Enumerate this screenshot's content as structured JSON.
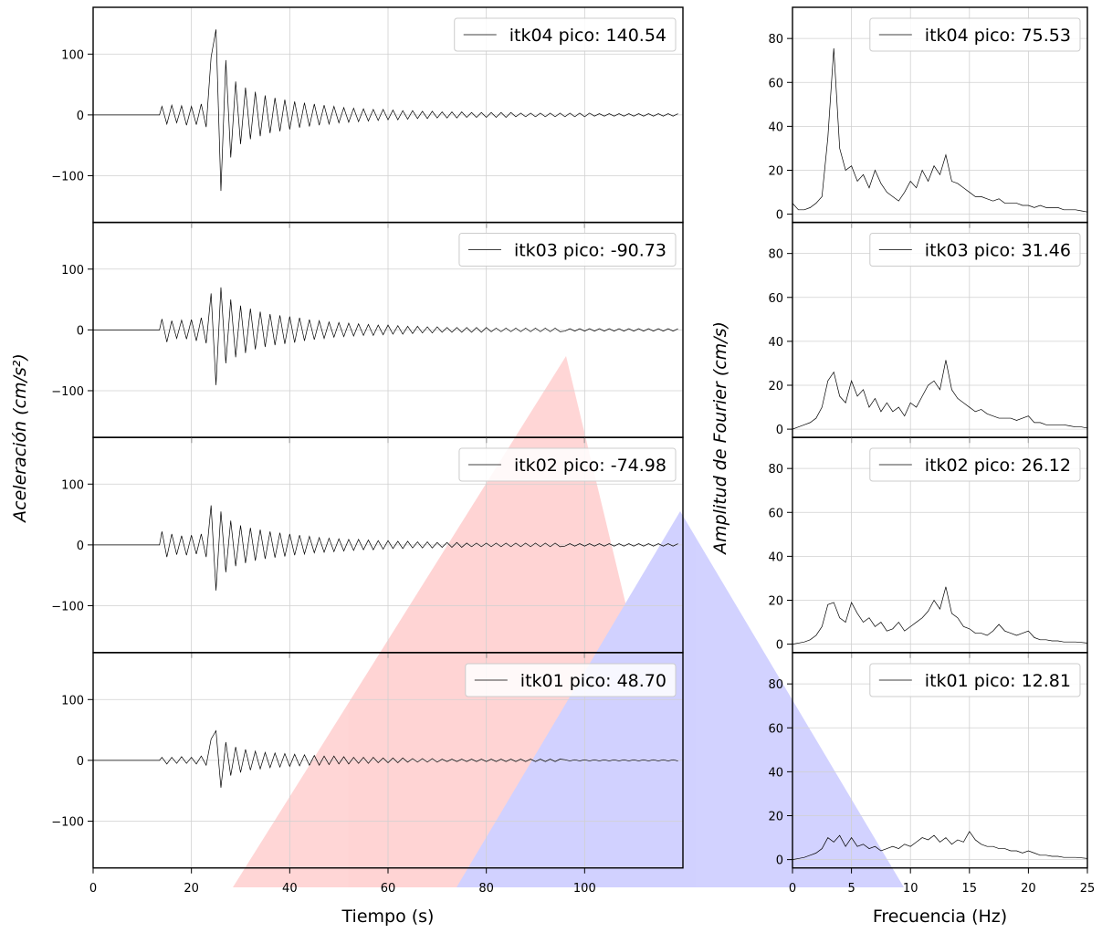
{
  "chart_data": [
    {
      "type": "line",
      "xlabel": "Tiempo (s)",
      "ylabel": "Aceleración (cm/s²)",
      "xlim": [
        0,
        120
      ],
      "ylim": [
        -177,
        177
      ],
      "xticks": [
        0,
        20,
        40,
        60,
        80,
        100
      ],
      "yticks": [
        {
          "value": -100,
          "label": "−100"
        },
        0,
        100
      ],
      "grid": true,
      "x": [
        0,
        13.5,
        14,
        15,
        16,
        17,
        18,
        19,
        20,
        21,
        22,
        23,
        24,
        25,
        26,
        27,
        28,
        29,
        30,
        31,
        32,
        33,
        34,
        35,
        36,
        37,
        38,
        39,
        40,
        41,
        42,
        43,
        44,
        45,
        46,
        47,
        48,
        49,
        50,
        51,
        52,
        53,
        54,
        55,
        56,
        57,
        58,
        59,
        60,
        61,
        62,
        63,
        64,
        65,
        66,
        67,
        68,
        69,
        70,
        71,
        72,
        73,
        74,
        75,
        76,
        77,
        78,
        79,
        80,
        81,
        82,
        83,
        84,
        85,
        86,
        87,
        88,
        89,
        90,
        91,
        92,
        93,
        94,
        95,
        96,
        97,
        98,
        99,
        100,
        101,
        102,
        103,
        104,
        105,
        106,
        107,
        108,
        109,
        110,
        111,
        112,
        113,
        114,
        115,
        116,
        117,
        118,
        119
      ],
      "series": [
        {
          "name": "itk04 pico: 140.54",
          "color": "#000000",
          "values": [
            0,
            0,
            14,
            -15,
            16,
            -13,
            15,
            -17,
            14,
            -16,
            18,
            -20,
            95,
            140.54,
            -125,
            90,
            -70,
            55,
            -48,
            45,
            -40,
            38,
            -35,
            32,
            -30,
            28,
            -27,
            25,
            -24,
            22,
            -21,
            20,
            -19,
            18,
            -17,
            16,
            -15,
            14,
            -13,
            12,
            -12,
            11,
            -11,
            10,
            -10,
            9,
            -9,
            9,
            -8,
            8,
            -8,
            7,
            -7,
            7,
            -6,
            6,
            -6,
            6,
            -5,
            5,
            -5,
            5,
            -5,
            5,
            -4,
            4,
            -4,
            4,
            -4,
            4,
            -4,
            4,
            -4,
            4,
            -3,
            3,
            -3,
            3,
            -3,
            3,
            -3,
            3,
            -3,
            3,
            -3,
            3,
            -3,
            3,
            -3,
            3,
            -2,
            2,
            -2,
            2,
            -2,
            2,
            -2,
            2,
            -2,
            2,
            -2,
            2,
            -2,
            2,
            -2,
            2,
            -2,
            2
          ]
        },
        {
          "name": "itk03 pico: -90.73",
          "color": "#000000",
          "values": [
            0,
            0,
            18,
            -20,
            15,
            -14,
            16,
            -15,
            17,
            -18,
            20,
            -22,
            60,
            -90.73,
            70,
            -55,
            50,
            -45,
            40,
            -38,
            35,
            -32,
            30,
            -28,
            26,
            -25,
            24,
            -23,
            22,
            -21,
            20,
            -18,
            17,
            -16,
            15,
            -14,
            13,
            -12,
            12,
            -11,
            11,
            -10,
            10,
            -9,
            9,
            -9,
            8,
            -8,
            8,
            -7,
            7,
            -7,
            6,
            -6,
            6,
            -5,
            5,
            -5,
            5,
            -4,
            4,
            -4,
            4,
            -4,
            4,
            -4,
            4,
            -4,
            4,
            -3,
            3,
            -3,
            3,
            -3,
            3,
            -3,
            3,
            -3,
            3,
            -3,
            3,
            -3,
            3,
            -3,
            -2,
            2,
            -2,
            2,
            -2,
            2,
            -2,
            2,
            -2,
            2,
            -2,
            2,
            -2,
            2,
            -2,
            2,
            -2,
            2,
            -2,
            2,
            -2,
            2,
            -2,
            2
          ]
        },
        {
          "name": "itk02 pico: -74.98",
          "color": "#000000",
          "values": [
            0,
            0,
            22,
            -20,
            18,
            -16,
            15,
            -17,
            16,
            -15,
            18,
            -20,
            65,
            -74.98,
            55,
            -45,
            40,
            -35,
            32,
            -30,
            28,
            -26,
            25,
            -23,
            22,
            -21,
            20,
            -19,
            18,
            -17,
            16,
            -15,
            14,
            -13,
            12,
            -12,
            11,
            -11,
            10,
            -10,
            9,
            -9,
            9,
            -8,
            8,
            -8,
            7,
            -7,
            7,
            -6,
            6,
            -6,
            6,
            -5,
            5,
            -5,
            5,
            -5,
            4,
            -4,
            4,
            -4,
            4,
            -4,
            3,
            -3,
            3,
            -3,
            3,
            -3,
            3,
            -3,
            3,
            -3,
            3,
            -3,
            3,
            -3,
            3,
            -3,
            3,
            -3,
            3,
            -3,
            -2,
            2,
            -2,
            2,
            -2,
            2,
            -2,
            2,
            -2,
            2,
            -2,
            2,
            -2,
            2,
            -2,
            2,
            -2,
            2,
            -2,
            2,
            -2,
            2,
            -2,
            2
          ]
        },
        {
          "name": "itk01 pico: 48.70",
          "color": "#000000",
          "values": [
            0,
            0,
            5,
            -6,
            5,
            -5,
            6,
            -5,
            5,
            -6,
            7,
            -8,
            35,
            48.7,
            -45,
            30,
            -25,
            22,
            -20,
            18,
            -16,
            15,
            -14,
            13,
            -12,
            12,
            -11,
            11,
            -10,
            10,
            -9,
            9,
            -8,
            8,
            -8,
            7,
            -7,
            7,
            -6,
            6,
            -6,
            5,
            -5,
            5,
            -5,
            5,
            -4,
            4,
            -4,
            4,
            -4,
            4,
            -3,
            3,
            -3,
            3,
            -3,
            3,
            -3,
            2,
            -2,
            2,
            -2,
            2,
            -2,
            2,
            -2,
            2,
            -2,
            2,
            -2,
            2,
            -2,
            2,
            -2,
            2,
            -2,
            2,
            -2,
            2,
            -2,
            2,
            -2,
            2,
            1,
            -1,
            1,
            -1,
            1,
            -1,
            1,
            -1,
            1,
            -1,
            1,
            -1,
            1,
            -1,
            1,
            -1,
            1,
            -1,
            1,
            -1,
            1,
            -1,
            1,
            -1
          ]
        }
      ]
    },
    {
      "type": "line",
      "xlabel": "Frecuencia (Hz)",
      "ylabel": "Amplitud de Fourier (cm/s)",
      "xlim": [
        0,
        25
      ],
      "ylim": [
        -3.8,
        94.2
      ],
      "xticks": [
        0,
        5,
        10,
        15,
        20,
        25
      ],
      "yticks": [
        0,
        20,
        40,
        60,
        80
      ],
      "grid": true,
      "x": [
        0,
        0.5,
        1,
        1.5,
        2,
        2.5,
        3,
        3.5,
        4,
        4.5,
        5,
        5.5,
        6,
        6.5,
        7,
        7.5,
        8,
        8.5,
        9,
        9.5,
        10,
        10.5,
        11,
        11.5,
        12,
        12.5,
        13,
        13.5,
        14,
        14.5,
        15,
        15.5,
        16,
        16.5,
        17,
        17.5,
        18,
        18.5,
        19,
        19.5,
        20,
        20.5,
        21,
        21.5,
        22,
        22.5,
        23,
        23.5,
        24,
        24.5,
        25
      ],
      "series": [
        {
          "name": "itk04 pico: 75.53",
          "color": "#000000",
          "values": [
            5,
            2,
            2,
            3,
            5,
            8,
            35,
            75.53,
            30,
            20,
            22,
            15,
            18,
            12,
            20,
            14,
            10,
            8,
            6,
            10,
            15,
            12,
            20,
            15,
            22,
            18,
            27,
            15,
            14,
            12,
            10,
            8,
            8,
            7,
            6,
            7,
            5,
            5,
            5,
            4,
            4,
            3,
            4,
            3,
            3,
            3,
            2,
            2,
            2,
            1.5,
            1
          ]
        },
        {
          "name": "itk03 pico: 31.46",
          "color": "#000000",
          "values": [
            0,
            1,
            2,
            3,
            5,
            10,
            22,
            26,
            15,
            12,
            22,
            15,
            18,
            10,
            14,
            8,
            12,
            8,
            10,
            6,
            12,
            10,
            15,
            20,
            22,
            18,
            31.46,
            18,
            14,
            12,
            10,
            8,
            9,
            7,
            6,
            5,
            5,
            5,
            4,
            5,
            6,
            3,
            3,
            2,
            2,
            2,
            2,
            1.5,
            1,
            1,
            0.5
          ]
        },
        {
          "name": "itk02 pico: 26.12",
          "color": "#000000",
          "values": [
            0,
            0.5,
            1,
            2,
            4,
            8,
            18,
            19,
            12,
            10,
            19,
            14,
            10,
            12,
            8,
            10,
            6,
            7,
            10,
            6,
            8,
            10,
            12,
            15,
            20,
            16,
            26.12,
            14,
            12,
            8,
            7,
            5,
            5,
            4,
            6,
            9,
            6,
            5,
            4,
            5,
            6,
            3,
            2,
            2,
            1.5,
            1.5,
            1,
            1,
            1,
            0.8,
            0.5
          ]
        },
        {
          "name": "itk01 pico: 12.81",
          "color": "#000000",
          "values": [
            0,
            0.5,
            1,
            2,
            3,
            5,
            10,
            8,
            11,
            6,
            10,
            6,
            7,
            5,
            6,
            4,
            5,
            6,
            5,
            7,
            6,
            8,
            10,
            9,
            11,
            8,
            10,
            7,
            9,
            8,
            12.81,
            9,
            7,
            6,
            6,
            5,
            5,
            4,
            4,
            3,
            4,
            3,
            2,
            2,
            1.5,
            1.5,
            1,
            1,
            1,
            0.8,
            0.5
          ]
        }
      ]
    }
  ]
}
